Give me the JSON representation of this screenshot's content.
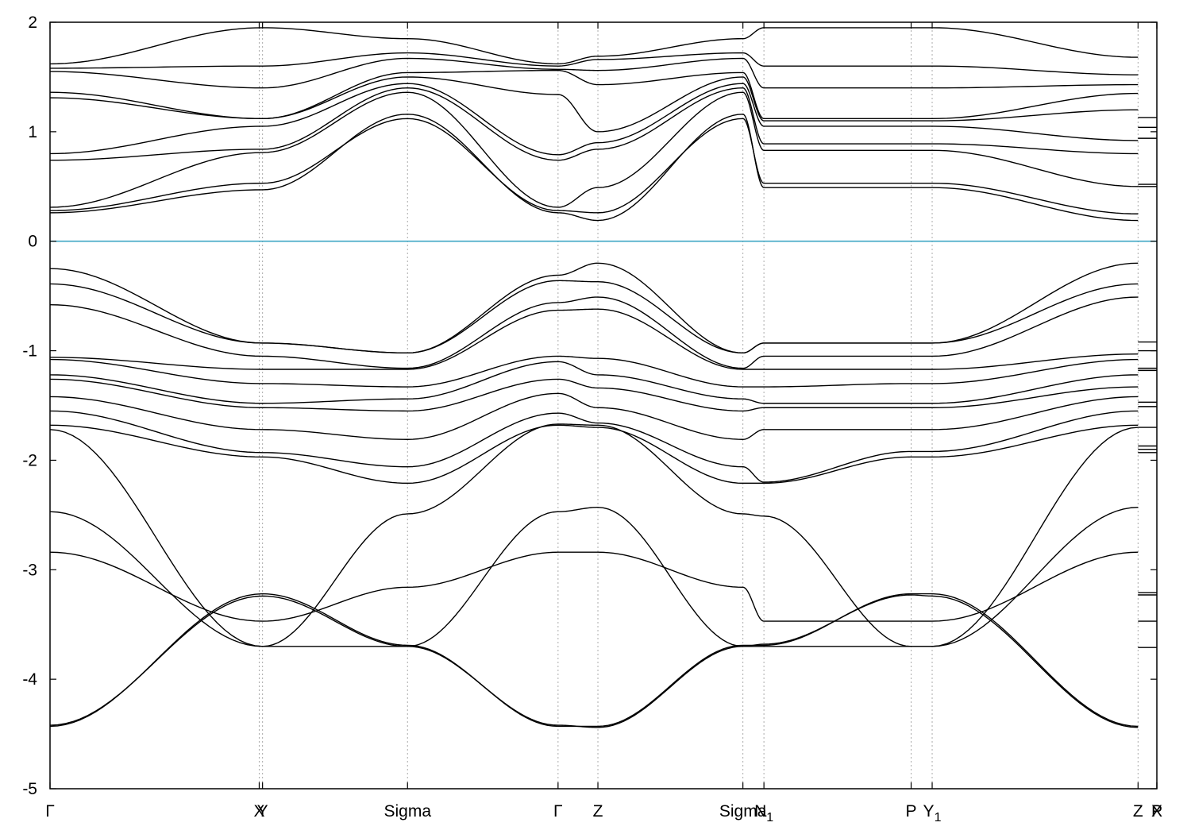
{
  "chart_data": {
    "type": "line",
    "title": "",
    "xlabel": "",
    "ylabel": "",
    "ylim": [
      -5,
      2
    ],
    "yticks": [
      2,
      1,
      0,
      -1,
      -2,
      -3,
      -4,
      -5
    ],
    "ytick_labels": [
      "2",
      "1",
      "0",
      "-1",
      "-2",
      "-3",
      "-4",
      "-5"
    ],
    "xlim": [
      0,
      1
    ],
    "grid": "vertical dotted lines at high-symmetry points",
    "legend": "none",
    "fermi_level": 0,
    "fermi_color": "#3fa7c4",
    "band_color": "#000000",
    "kpoints": [
      {
        "x": 0.0,
        "label": "Γ",
        "sub": ""
      },
      {
        "x": 0.189,
        "label": "X",
        "sub": ""
      },
      {
        "x": 0.192,
        "label": "Y",
        "sub": ""
      },
      {
        "x": 0.323,
        "label": "Sigma",
        "sub": ""
      },
      {
        "x": 0.459,
        "label": "Γ",
        "sub": ""
      },
      {
        "x": 0.495,
        "label": "Z",
        "sub": ""
      },
      {
        "x": 0.626,
        "label": "Sigma",
        "sub": ""
      },
      {
        "x": 0.645,
        "label": "N",
        "sub": "1"
      },
      {
        "x": 0.778,
        "label": "P",
        "sub": ""
      },
      {
        "x": 0.797,
        "label": "Y",
        "sub": "1"
      },
      {
        "x": 0.983,
        "label": "Z",
        "sub": ""
      },
      {
        "x": 1.0,
        "label": "X",
        "sub": ""
      },
      {
        "x": 1.0,
        "label": "P",
        "sub": ""
      }
    ],
    "path_nodes": [
      0.0,
      0.192,
      0.323,
      0.459,
      0.495,
      0.626,
      0.645,
      0.778,
      0.797,
      0.983
    ],
    "series": [
      {
        "values": [
          -4.43,
          -3.22,
          -3.69,
          -4.43,
          -4.43,
          -3.69,
          -3.69,
          -3.22,
          -3.22,
          -4.43
        ]
      },
      {
        "values": [
          -4.42,
          -3.24,
          -3.7,
          -4.42,
          -4.44,
          -3.7,
          -3.68,
          -3.23,
          -3.24,
          -4.44
        ]
      },
      {
        "values": [
          -2.84,
          -3.47,
          -3.16,
          -2.84,
          -2.84,
          -3.16,
          -3.47,
          -3.47,
          -3.47,
          -2.84
        ]
      },
      {
        "values": [
          -2.47,
          -3.7,
          -3.7,
          -2.47,
          -2.43,
          -3.7,
          -3.7,
          -3.7,
          -3.7,
          -2.43
        ]
      },
      {
        "values": [
          -1.72,
          -3.7,
          -2.49,
          -1.67,
          -1.68,
          -2.49,
          -2.51,
          -3.7,
          -3.7,
          -1.7
        ]
      },
      {
        "values": [
          -1.68,
          -1.97,
          -2.21,
          -1.68,
          -1.7,
          -2.21,
          -2.21,
          -1.97,
          -1.97,
          -1.68
        ]
      },
      {
        "values": [
          -1.55,
          -1.93,
          -2.06,
          -1.57,
          -1.66,
          -2.06,
          -2.2,
          -1.92,
          -1.92,
          -1.55
        ]
      },
      {
        "values": [
          -1.42,
          -1.72,
          -1.81,
          -1.39,
          -1.52,
          -1.81,
          -1.72,
          -1.72,
          -1.72,
          -1.42
        ]
      },
      {
        "values": [
          -1.26,
          -1.52,
          -1.55,
          -1.26,
          -1.34,
          -1.55,
          -1.52,
          -1.52,
          -1.52,
          -1.33
        ]
      },
      {
        "values": [
          -1.22,
          -1.48,
          -1.44,
          -1.1,
          -1.22,
          -1.44,
          -1.48,
          -1.48,
          -1.48,
          -1.22
        ]
      },
      {
        "values": [
          -1.08,
          -1.3,
          -1.33,
          -1.05,
          -1.07,
          -1.33,
          -1.33,
          -1.3,
          -1.3,
          -1.08
        ]
      },
      {
        "values": [
          -1.06,
          -1.17,
          -1.17,
          -0.63,
          -0.62,
          -1.17,
          -1.17,
          -1.17,
          -1.17,
          -1.03
        ]
      },
      {
        "values": [
          -0.58,
          -1.05,
          -1.16,
          -0.56,
          -0.51,
          -1.16,
          -1.05,
          -1.05,
          -1.05,
          -0.51
        ]
      },
      {
        "values": [
          -0.39,
          -0.93,
          -1.02,
          -0.36,
          -0.37,
          -1.02,
          -0.93,
          -0.93,
          -0.93,
          -0.39
        ]
      },
      {
        "values": [
          -0.25,
          -0.93,
          -1.02,
          -0.31,
          -0.2,
          -1.02,
          -0.93,
          -0.93,
          -0.93,
          -0.2
        ]
      },
      {
        "values": [
          0.26,
          0.47,
          1.16,
          0.26,
          0.19,
          1.16,
          0.49,
          0.49,
          0.49,
          0.19
        ]
      },
      {
        "values": [
          0.28,
          0.53,
          1.12,
          0.28,
          0.26,
          1.12,
          0.53,
          0.53,
          0.53,
          0.25
        ]
      },
      {
        "values": [
          0.31,
          0.81,
          1.36,
          0.31,
          0.49,
          1.36,
          0.83,
          0.83,
          0.83,
          0.5
        ]
      },
      {
        "values": [
          0.74,
          0.84,
          1.4,
          0.74,
          0.84,
          1.4,
          0.89,
          0.89,
          0.89,
          0.8
        ]
      },
      {
        "values": [
          0.8,
          1.05,
          1.44,
          0.79,
          0.9,
          1.44,
          1.05,
          1.05,
          1.05,
          0.92
        ]
      },
      {
        "values": [
          1.31,
          1.12,
          1.5,
          1.34,
          1.0,
          1.5,
          1.1,
          1.1,
          1.1,
          1.2
        ]
      },
      {
        "values": [
          1.36,
          1.12,
          1.54,
          1.56,
          1.43,
          1.54,
          1.12,
          1.12,
          1.12,
          1.35
        ]
      },
      {
        "values": [
          1.55,
          1.4,
          1.67,
          1.57,
          1.56,
          1.67,
          1.4,
          1.4,
          1.4,
          1.43
        ]
      },
      {
        "values": [
          1.58,
          1.6,
          1.72,
          1.6,
          1.66,
          1.72,
          1.6,
          1.6,
          1.6,
          1.52
        ]
      },
      {
        "values": [
          1.62,
          1.95,
          1.85,
          1.62,
          1.69,
          1.85,
          1.95,
          1.95,
          1.95,
          1.68
        ]
      }
    ],
    "end_segment_levels": [
      1.13,
      1.04,
      0.94,
      0.52,
      0.5,
      -0.92,
      -1.0,
      -1.16,
      -1.18,
      -1.47,
      -1.51,
      -1.7,
      -1.87,
      -1.9,
      -1.93,
      -3.21,
      -3.23,
      -3.47,
      -3.71
    ]
  }
}
